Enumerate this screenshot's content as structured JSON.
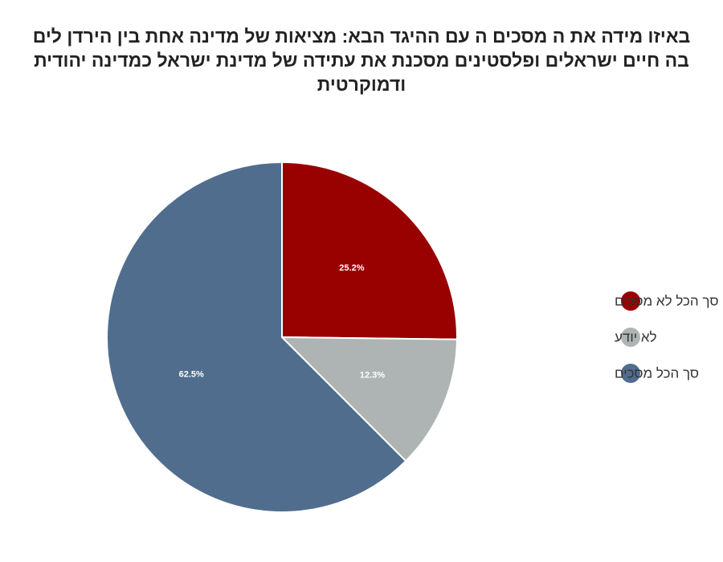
{
  "chart_data": {
    "type": "pie",
    "title": "באיזו מידה את ה מסכים ה עם ההיגד הבא: מציאות של מדינה אחת בין הירדן לים בה חיים ישראלים ופלסטינים מסכנת את עתידה של מדינת ישראל כמדינה יהודית ודמוקרטית",
    "slices": [
      {
        "label": "סך הכל לא מסכים",
        "value": 25.2,
        "display": "25.2%",
        "color": "#990000"
      },
      {
        "label": "לא יודע",
        "value": 12.3,
        "display": "12.3%",
        "color": "#aeb4b4"
      },
      {
        "label": "סך הכל מסכים",
        "value": 62.5,
        "display": "62.5%",
        "color": "#506d8e"
      }
    ],
    "legend_position": "right"
  }
}
